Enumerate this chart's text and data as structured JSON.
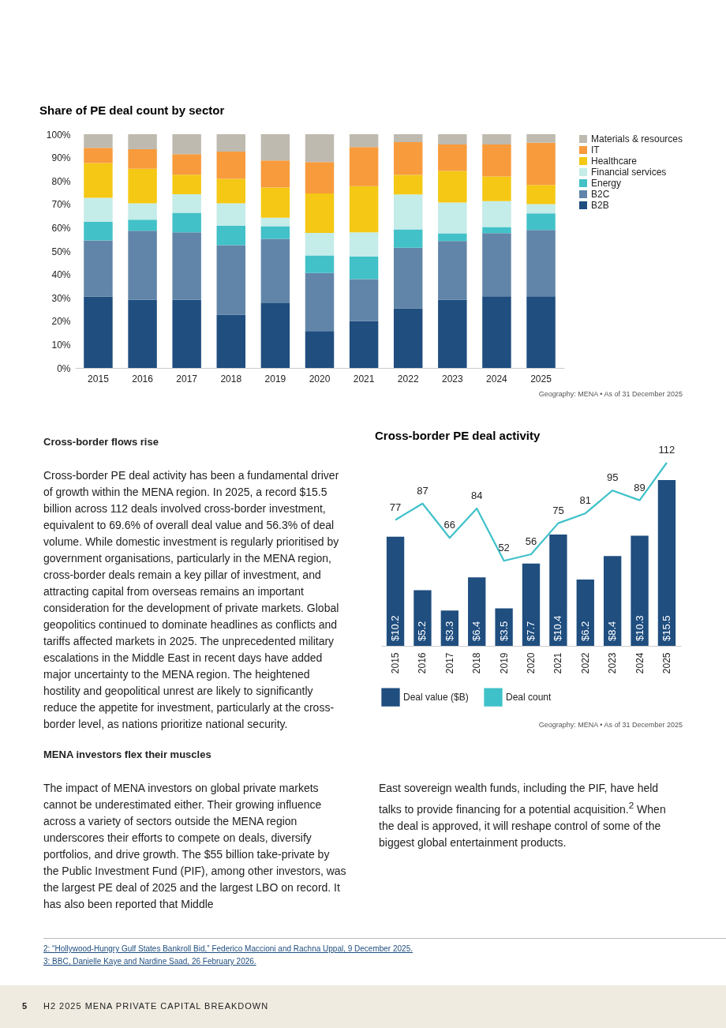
{
  "chart_data": [
    {
      "type": "bar",
      "title": "Share of PE deal count by sector",
      "categories": [
        "2015",
        "2016",
        "2017",
        "2018",
        "2019",
        "2020",
        "2021",
        "2022",
        "2023",
        "2024",
        "2025"
      ],
      "stacked": true,
      "legend": "right",
      "ylim": [
        0,
        100
      ],
      "yticks": [
        {
          "value": 0,
          "label": "0%"
        },
        {
          "value": 10,
          "label": "10%"
        },
        {
          "value": 20,
          "label": "20%"
        },
        {
          "value": 30,
          "label": "30%"
        },
        {
          "value": 40,
          "label": "40%"
        },
        {
          "value": 50,
          "label": "50%"
        },
        {
          "value": 60,
          "label": "60%"
        },
        {
          "value": 70,
          "label": "70%"
        },
        {
          "value": 80,
          "label": "80%"
        },
        {
          "value": 90,
          "label": "90%"
        },
        {
          "value": 100,
          "label": "100%"
        }
      ],
      "series": [
        {
          "name": "B2B",
          "color": "#1f4e7f",
          "values": [
            30.5,
            29.1,
            29.1,
            22.8,
            27.7,
            15.8,
            20.1,
            25.5,
            29.2,
            30.7,
            30.7
          ]
        },
        {
          "name": "B2C",
          "color": "#6185a8",
          "values": [
            24.1,
            29.6,
            28.9,
            29.7,
            27.5,
            24.8,
            17.9,
            25.9,
            25.1,
            27.0,
            28.3
          ]
        },
        {
          "name": "Energy",
          "color": "#42c1c8",
          "values": [
            8.0,
            4.7,
            8.4,
            8.4,
            5.4,
            7.5,
            9.7,
            7.9,
            3.3,
            2.6,
            7.1
          ]
        },
        {
          "name": "Financial services",
          "color": "#c4ece9",
          "values": [
            10.2,
            7.0,
            7.9,
            9.5,
            3.7,
            9.7,
            10.3,
            14.9,
            13.2,
            11.1,
            4.0
          ]
        },
        {
          "name": "Healthcare",
          "color": "#f4c814",
          "values": [
            14.9,
            14.8,
            8.4,
            10.5,
            12.9,
            16.9,
            19.8,
            8.4,
            13.5,
            10.5,
            8.2
          ]
        },
        {
          "name": "IT",
          "color": "#f79b3c",
          "values": [
            6.5,
            8.4,
            8.8,
            11.7,
            11.6,
            13.4,
            16.7,
            14.0,
            11.3,
            13.7,
            18.1
          ]
        },
        {
          "name": "Materials & resources",
          "color": "#bfbab0",
          "values": [
            5.8,
            6.4,
            8.5,
            7.4,
            11.2,
            11.9,
            5.5,
            3.4,
            4.4,
            4.4,
            3.6
          ]
        }
      ],
      "annotations": [
        "Geography: MENA • As of 31 December 2025"
      ]
    },
    {
      "type": "bar",
      "title": "Cross-border PE deal activity",
      "categories": [
        "2015",
        "2016",
        "2017",
        "2018",
        "2019",
        "2020",
        "2021",
        "2022",
        "2023",
        "2024",
        "2025"
      ],
      "legend": "bottom",
      "tick_labels": "x",
      "data_labels": true,
      "series": [
        {
          "name": "Deal value ($B)",
          "type": "bar",
          "color": "#1f4e7f",
          "values": [
            10.2,
            5.2,
            3.3,
            6.4,
            3.5,
            7.7,
            10.4,
            6.2,
            8.4,
            10.3,
            15.5
          ],
          "value_labels": [
            "$10.2",
            "$5.2",
            "$3.3",
            "$6.4",
            "$3.5",
            "$7.7",
            "$10.4",
            "$6.2",
            "$8.4",
            "$10.3",
            "$15.5"
          ]
        },
        {
          "name": "Deal count",
          "type": "line",
          "axis": "y2",
          "color": "#3fc1c9",
          "values": [
            77,
            87,
            66,
            84,
            52,
            56,
            75,
            81,
            95,
            89,
            112
          ]
        }
      ],
      "annotations": [
        "Geography: MENA • As of 31 December 2025"
      ]
    },
    {
      "type": "other",
      "annotations": [
        "Cross-border flows rise",
        "Cross-border PE deal activity has been a fundamental driver of growth within the MENA region. In 2025, a record $15.5 billion across 112 deals involved cross-border investment, equivalent to 69.6% of overall deal value and 56.3% of deal volume. While domestic investment is regularly prioritised by government organisations, particularly in the MENA region, cross-border deals remain a key pillar of investment, and attracting capital from overseas remains an important consideration for the development of private markets. Global geopolitics continued to dominate headlines as conflicts and tariffs affected markets in 2025. The unprecedented military escalations in the Middle East in recent days have added major uncertainty to the MENA region. The heightened hostility and geopolitical unrest are likely to significantly reduce the appetite for investment, particularly at the cross-border level, as nations prioritize national security.",
        "MENA investors flex their muscles",
        "The impact of MENA investors on global private markets cannot be underestimated either. Their growing influence across a variety of sectors outside the MENA region underscores their efforts to compete on deals, diversify portfolios, and drive growth. The $55 billion take-private by the Public Investment Fund (PIF), among other investors, was the largest PE deal of 2025 and the largest LBO on record. It has also been reported that Middle",
        "East sovereign wealth funds, including the PIF, have held talks to provide financing for a potential acquisition.$^{2}$ When the deal is approved, it will reshape control of some of the biggest global entertainment products.",
        "2: “Hollywood-Hungry Gulf States Bankroll Bid,” Federico Maccioni and Rachna Uppal, 9 December 2025.",
        "3: BBC, Danielle Kaye and Nardine Saad, 26 February 2026.",
        "5",
        "H2 2025 MENA PRIVATE CAPITAL BREAKDOWN"
      ]
    }
  ]
}
